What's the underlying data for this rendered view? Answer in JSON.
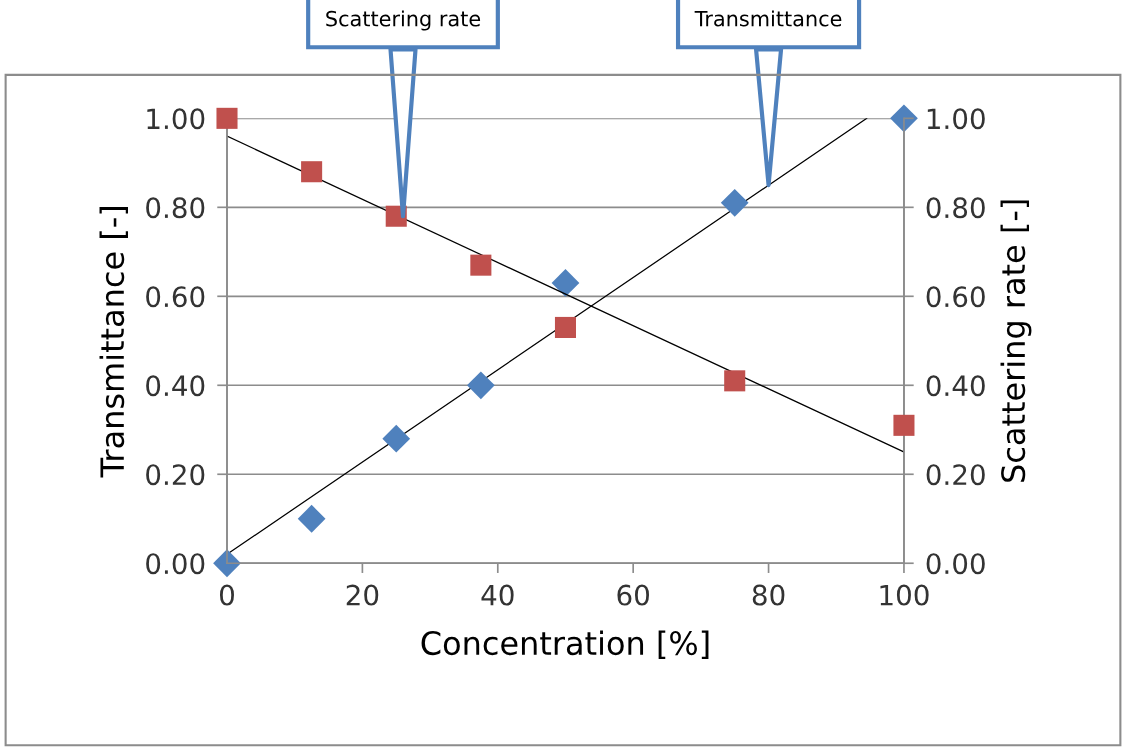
{
  "chart_data": {
    "type": "scatter",
    "xlabel": "Concentration [%]",
    "ylabel": "Transmittance [-]",
    "y2label": "Scattering rate [-]",
    "x": [
      0,
      12.5,
      25,
      37.5,
      50,
      75,
      100
    ],
    "series": [
      {
        "color": "#4f81bd",
        "marker": "diamond",
        "values": [
          0.0,
          0.1,
          0.28,
          0.4,
          0.63,
          0.81,
          1.0
        ]
      },
      {
        "color": "#c0504d",
        "marker": "square",
        "axis": "y2",
        "values": [
          1.0,
          0.88,
          0.78,
          0.67,
          0.53,
          0.41,
          0.31
        ]
      },
      {
        "type": "line",
        "color": "#000000",
        "x": [
          0,
          94.5
        ],
        "values": [
          0.02,
          1.0
        ]
      },
      {
        "type": "line",
        "color": "#000000",
        "axis": "y2",
        "x": [
          0,
          100
        ],
        "values": [
          0.96,
          0.25
        ]
      }
    ],
    "xlim": [
      0,
      100
    ],
    "xticks": [
      0,
      20,
      40,
      60,
      80,
      100
    ],
    "ylim": [
      0,
      1
    ],
    "yticks": [
      {
        "value": 0,
        "label": "0.00"
      },
      {
        "value": 0.2,
        "label": "0.20"
      },
      {
        "value": 0.4,
        "label": "0.40"
      },
      {
        "value": 0.6,
        "label": "0.60"
      },
      {
        "value": 0.8,
        "label": "0.80"
      },
      {
        "value": 1,
        "label": "1.00"
      }
    ],
    "y2lim": [
      0,
      1
    ],
    "y2ticks": [
      {
        "value": 0,
        "label": "0.00"
      },
      {
        "value": 0.2,
        "label": "0.20"
      },
      {
        "value": 0.4,
        "label": "0.40"
      },
      {
        "value": 0.6,
        "label": "0.60"
      },
      {
        "value": 0.8,
        "label": "0.80"
      },
      {
        "value": 1,
        "label": "1.00"
      }
    ],
    "grid": "y",
    "legend": false,
    "annotations": [
      {
        "text": "Scattering rate",
        "x": 26,
        "y": 0.78
      },
      {
        "text": "Transmittance",
        "x": 80,
        "y": 0.85
      }
    ]
  }
}
